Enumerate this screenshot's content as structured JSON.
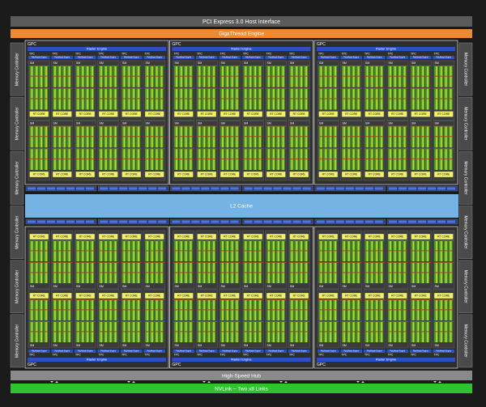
{
  "header": {
    "pcie": "PCI Express 3.0 Host Interface",
    "gigathread": "GigaThread Engine"
  },
  "gpc": {
    "label": "GPC",
    "raster_engine": "Raster Engine",
    "tpc": "TPC",
    "polymorph_engine": "PolyMorph Engine",
    "sm": "SM",
    "rt_core": "RT CORE"
  },
  "memory_controller": "Memory Controller",
  "l2_cache": "L2 Cache",
  "high_speed_hub": "High-Speed Hub",
  "nvlink": "NVLink – Two x8 Links"
}
